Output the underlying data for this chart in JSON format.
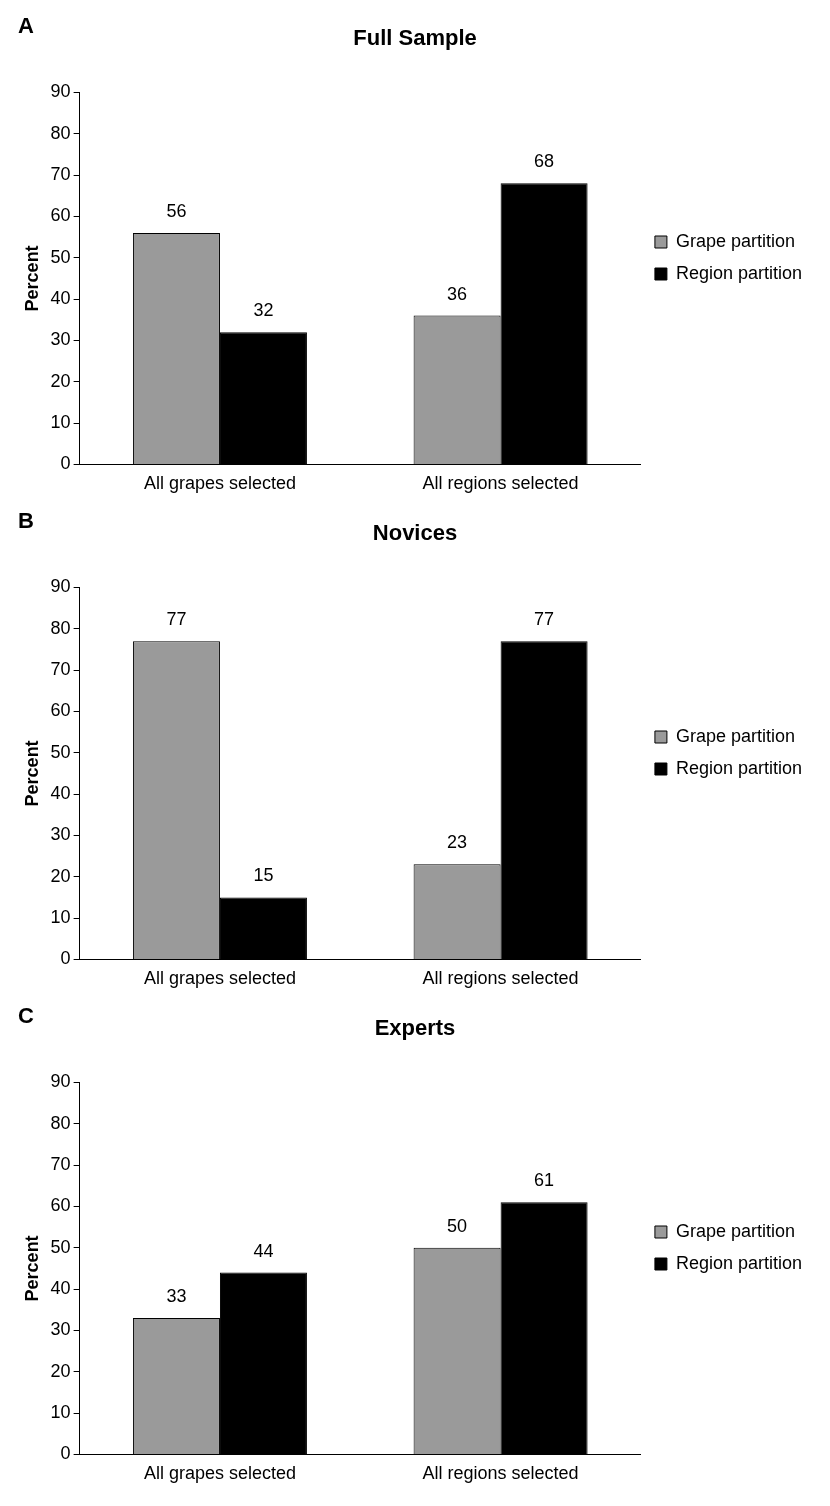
{
  "chart_data": [
    {
      "type": "bar",
      "title": "Full Sample",
      "annotations": [
        "A"
      ],
      "ylabel": "Percent",
      "categories": [
        "All grapes selected",
        "All regions selected"
      ],
      "series": [
        {
          "name": "Grape partition",
          "color": "#9a9a9a",
          "values": [
            56,
            36
          ]
        },
        {
          "name": "Region partition",
          "color": "#000000",
          "values": [
            32,
            68
          ]
        }
      ],
      "ylim": [
        0,
        90
      ],
      "yticks": [
        0,
        10,
        20,
        30,
        40,
        50,
        60,
        70,
        80,
        90
      ],
      "data_labels": true,
      "legend": "right",
      "grid": false
    },
    {
      "type": "bar",
      "title": "Novices",
      "annotations": [
        "B"
      ],
      "ylabel": "Percent",
      "categories": [
        "All grapes selected",
        "All regions selected"
      ],
      "series": [
        {
          "name": "Grape partition",
          "color": "#9a9a9a",
          "values": [
            77,
            23
          ]
        },
        {
          "name": "Region partition",
          "color": "#000000",
          "values": [
            15,
            77
          ]
        }
      ],
      "ylim": [
        0,
        90
      ],
      "yticks": [
        0,
        10,
        20,
        30,
        40,
        50,
        60,
        70,
        80,
        90
      ],
      "data_labels": true,
      "legend": "right",
      "grid": false
    },
    {
      "type": "bar",
      "title": "Experts",
      "annotations": [
        "C"
      ],
      "ylabel": "Percent",
      "categories": [
        "All grapes selected",
        "All regions selected"
      ],
      "series": [
        {
          "name": "Grape partition",
          "color": "#9a9a9a",
          "values": [
            33,
            50
          ]
        },
        {
          "name": "Region partition",
          "color": "#000000",
          "values": [
            44,
            61
          ]
        }
      ],
      "ylim": [
        0,
        90
      ],
      "yticks": [
        0,
        10,
        20,
        30,
        40,
        50,
        60,
        70,
        80,
        90
      ],
      "data_labels": true,
      "legend": "right",
      "grid": false
    }
  ]
}
